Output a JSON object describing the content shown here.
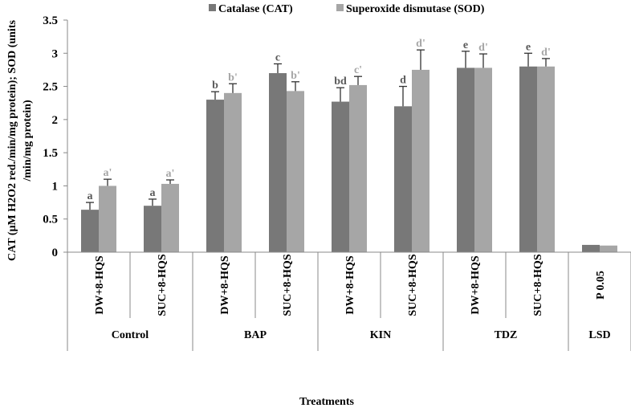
{
  "chart_data": {
    "type": "bar",
    "title": "",
    "xlabel": "Treatments",
    "ylabel_lines": [
      "CAT (µM H2O2 red./min/mg protein); SOD (units",
      "/min/mg protein)"
    ],
    "ylim": [
      0,
      3.5
    ],
    "yticks": [
      "0",
      "0.5",
      "1",
      "1.5",
      "2",
      "2.5",
      "3",
      "3.5"
    ],
    "grid": false,
    "legend_position": "top",
    "categories": [
      "DW+8-HQS",
      "SUC+8-HQS",
      "DW+8-HQS",
      "SUC+8-HQS",
      "DW+8-HQS",
      "SUC+8-HQS",
      "DW+8-HQS",
      "SUC+8-HQS",
      "P 0.05"
    ],
    "groups": [
      {
        "label": "Control",
        "span": 2
      },
      {
        "label": "BAP",
        "span": 2
      },
      {
        "label": "KIN",
        "span": 2
      },
      {
        "label": "TDZ",
        "span": 2
      },
      {
        "label": "LSD",
        "span": 1
      }
    ],
    "series": [
      {
        "name": "Catalase (CAT)",
        "color": "#787878",
        "letter_color": "#5a5a5a",
        "values": [
          0.64,
          0.7,
          2.3,
          2.7,
          2.27,
          2.2,
          2.78,
          2.8,
          0.11
        ],
        "errors": [
          0.11,
          0.1,
          0.12,
          0.14,
          0.21,
          0.3,
          0.25,
          0.2,
          null
        ],
        "letters": [
          "a",
          "a",
          "b",
          "c",
          "bd",
          "d",
          "e",
          "e",
          ""
        ]
      },
      {
        "name": "Superoxide dismutase (SOD)",
        "color": "#a6a6a6",
        "letter_color": "#a6a6a6",
        "values": [
          1.0,
          1.03,
          2.4,
          2.43,
          2.52,
          2.75,
          2.78,
          2.8,
          0.1
        ],
        "errors": [
          0.1,
          0.06,
          0.14,
          0.14,
          0.13,
          0.3,
          0.21,
          0.12,
          null
        ],
        "letters": [
          "a'",
          "a'",
          "b'",
          "b'",
          "c'",
          "d'",
          "d'",
          "d'",
          ""
        ]
      }
    ]
  }
}
